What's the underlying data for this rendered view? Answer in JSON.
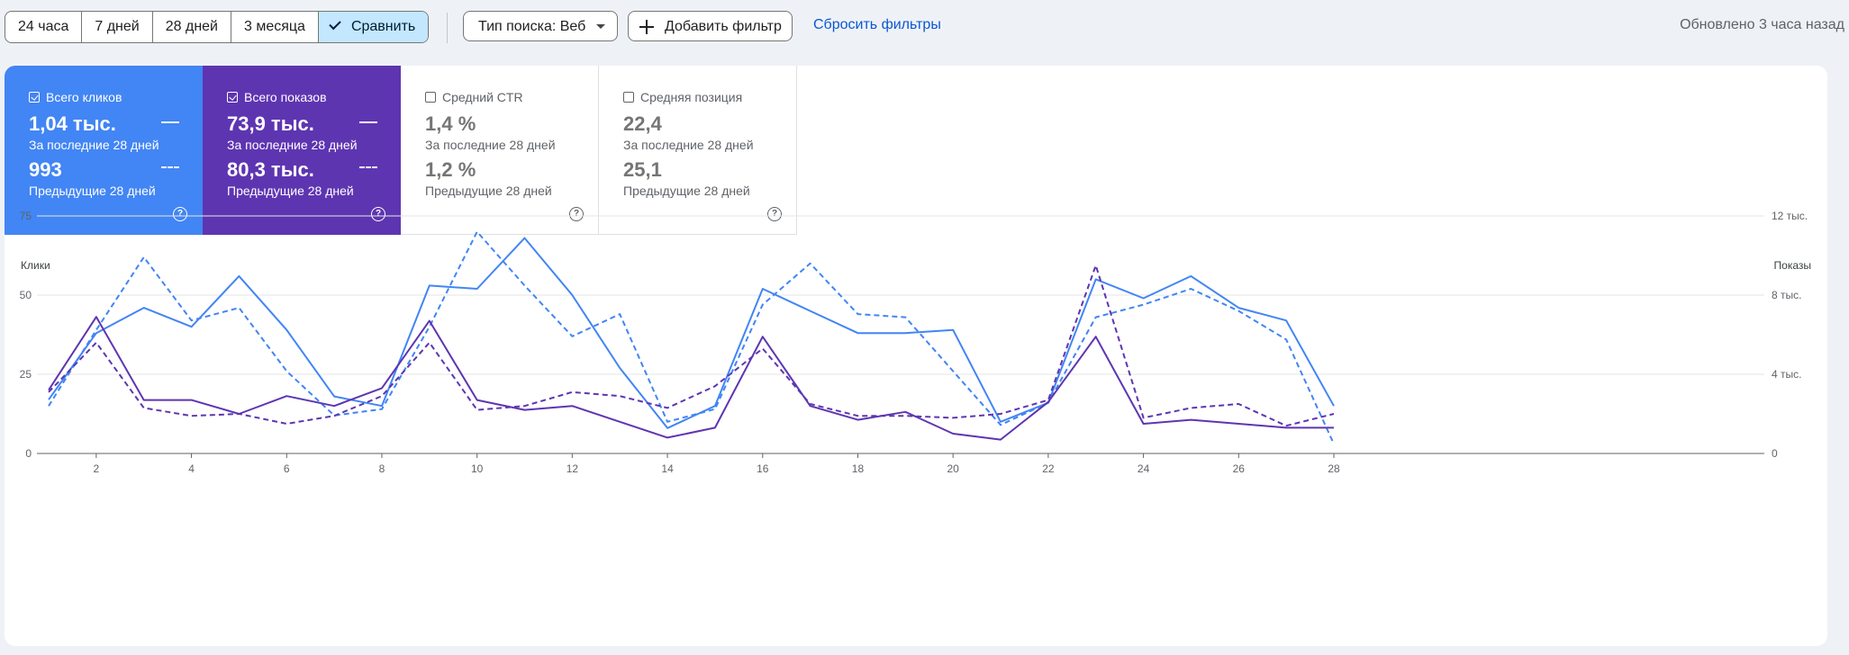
{
  "toolbar": {
    "ranges": [
      "24 часа",
      "7 дней",
      "28 дней",
      "3 месяца"
    ],
    "compare_label": "Сравнить",
    "search_type_label": "Тип поиска: Веб",
    "add_filter_label": "Добавить фильтр",
    "reset_label": "Сбросить фильтры",
    "updated_text": "Обновлено 3 часа назад"
  },
  "metrics": [
    {
      "title": "Всего кликов",
      "checked": true,
      "value": "1,04 тыс.",
      "period": "За последние 28 дней",
      "prev_value": "993",
      "prev_period": "Предыдущие 28 дней",
      "color": "#4285f4"
    },
    {
      "title": "Всего показов",
      "checked": true,
      "value": "73,9 тыс.",
      "period": "За последние 28 дней",
      "prev_value": "80,3 тыс.",
      "prev_period": "Предыдущие 28 дней",
      "color": "#5e35b1"
    },
    {
      "title": "Средний CTR",
      "checked": false,
      "value": "1,4 %",
      "period": "За последние 28 дней",
      "prev_value": "1,2 %",
      "prev_period": "Предыдущие 28 дней"
    },
    {
      "title": "Средняя позиция",
      "checked": false,
      "value": "22,4",
      "period": "За последние 28 дней",
      "prev_value": "25,1",
      "prev_period": "Предыдущие 28 дней"
    }
  ],
  "help_glyph": "?",
  "chart_data": {
    "type": "line",
    "ylabel_left": "Клики",
    "ylabel_right": "Показы",
    "x": [
      1,
      2,
      3,
      4,
      5,
      6,
      7,
      8,
      9,
      10,
      11,
      12,
      13,
      14,
      15,
      16,
      17,
      18,
      19,
      20,
      21,
      22,
      23,
      24,
      25,
      26,
      27,
      28
    ],
    "x_ticks": [
      "2",
      "4",
      "6",
      "8",
      "10",
      "12",
      "14",
      "16",
      "18",
      "20",
      "22",
      "24",
      "26",
      "28"
    ],
    "y_left_ticks": [
      "0",
      "25",
      "50",
      "75"
    ],
    "y_right_ticks": [
      "0",
      "4 тыс.",
      "8 тыс.",
      "12 тыс."
    ],
    "ylim_left": [
      0,
      75
    ],
    "ylim_right": [
      0,
      12000
    ],
    "grid": true,
    "series": [
      {
        "name": "Всего кликов",
        "axis": "left",
        "style": "solid",
        "color": "#4285f4",
        "values": [
          17,
          38,
          46,
          40,
          56,
          39,
          18,
          15,
          53,
          52,
          68,
          50,
          27,
          8,
          15,
          52,
          45,
          38,
          38,
          39,
          10,
          16,
          55,
          49,
          56,
          46,
          42,
          15
        ]
      },
      {
        "name": "Всего кликов",
        "axis": "left",
        "style": "dashed",
        "color": "#4285f4",
        "values": [
          15,
          39,
          62,
          42,
          46,
          26,
          12,
          14,
          40,
          70,
          53,
          37,
          44,
          10,
          14,
          47,
          60,
          44,
          43,
          26,
          9,
          16,
          43,
          47,
          52,
          45,
          36,
          3
        ]
      },
      {
        "name": "Всего показов",
        "axis": "right",
        "style": "solid",
        "color": "#5e35b1",
        "values": [
          3200,
          6900,
          2700,
          2700,
          2000,
          2900,
          2400,
          3300,
          6700,
          2700,
          2200,
          2400,
          1600,
          800,
          1300,
          5900,
          2400,
          1700,
          2100,
          1000,
          700,
          2600,
          5900,
          1500,
          1700,
          1500,
          1300,
          1300
        ]
      },
      {
        "name": "Всего показов",
        "axis": "right",
        "style": "dashed",
        "color": "#5e35b1",
        "values": [
          3100,
          5600,
          2300,
          1900,
          2000,
          1500,
          1900,
          2900,
          5600,
          2200,
          2400,
          3100,
          2900,
          2300,
          3400,
          5300,
          2500,
          1900,
          1900,
          1800,
          2000,
          2700,
          9500,
          1800,
          2300,
          2500,
          1400,
          2000
        ]
      }
    ]
  }
}
